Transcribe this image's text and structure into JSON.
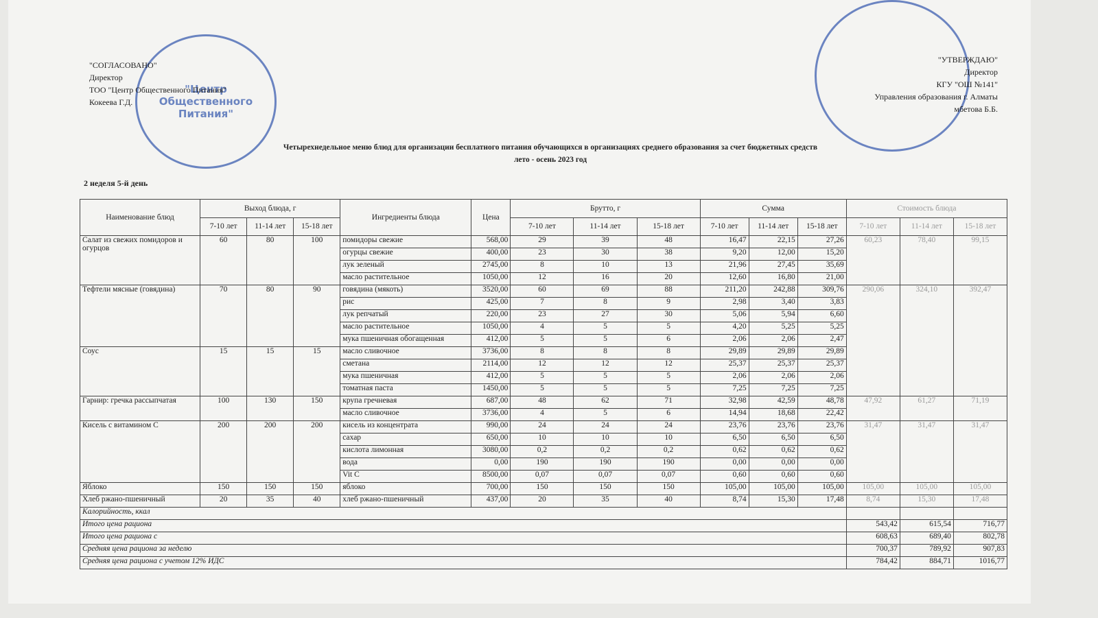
{
  "header": {
    "left": [
      "\"СОГЛАСОВАНО\"",
      "Директор",
      "ТОО \"Центр Общественного Питания\"",
      "Кокеева Г.Д."
    ],
    "right": [
      "\"УТВЕРЖДАЮ\"",
      "Директор",
      "КГУ \"ОШ №141\"",
      "Управления образования г. Алматы",
      "мбетова Б.Б."
    ],
    "stamp": "\"Центр Общественного Питания\"",
    "title": "Четырехнедельное меню блюд для организации бесплатного питания обучающихся в организациях среднего образования за счет бюджетных средств",
    "season": "лето - осень 2023 год",
    "day": "2 неделя 5-й день"
  },
  "table": {
    "columns": {
      "name": "Наименование блюд",
      "yield": "Выход блюда, г",
      "ingredients": "Ингредиенты блюда",
      "price": "Цена",
      "gross": "Брутто, г",
      "sum": "Сумма",
      "cost": "Стоимость блюда",
      "ages": [
        "7-10 лет",
        "11-14 лет",
        "15-18 лет"
      ]
    },
    "dishes": [
      {
        "name": "Салат из свежих помидоров и огурцов",
        "yield": [
          "60",
          "80",
          "100"
        ],
        "cost": [
          "60,23",
          "78,40",
          "99,15"
        ],
        "ingredients": [
          {
            "name": "помидоры свежие",
            "price": "568,00",
            "gross": [
              "29",
              "39",
              "48"
            ],
            "sum": [
              "16,47",
              "22,15",
              "27,26"
            ]
          },
          {
            "name": "огурцы свежие",
            "price": "400,00",
            "gross": [
              "23",
              "30",
              "38"
            ],
            "sum": [
              "9,20",
              "12,00",
              "15,20"
            ]
          },
          {
            "name": "лук зеленый",
            "price": "2745,00",
            "gross": [
              "8",
              "10",
              "13"
            ],
            "sum": [
              "21,96",
              "27,45",
              "35,69"
            ]
          },
          {
            "name": "масло растительное",
            "price": "1050,00",
            "gross": [
              "12",
              "16",
              "20"
            ],
            "sum": [
              "12,60",
              "16,80",
              "21,00"
            ]
          }
        ]
      },
      {
        "name": "Тефтели мясные (говядина)",
        "yield": [
          "70",
          "80",
          "90"
        ],
        "cost": [
          "290,06",
          "324,10",
          "392,47"
        ],
        "ingredients": [
          {
            "name": "говядина (мякоть)",
            "price": "3520,00",
            "gross": [
              "60",
              "69",
              "88"
            ],
            "sum": [
              "211,20",
              "242,88",
              "309,76"
            ]
          },
          {
            "name": "рис",
            "price": "425,00",
            "gross": [
              "7",
              "8",
              "9"
            ],
            "sum": [
              "2,98",
              "3,40",
              "3,83"
            ]
          },
          {
            "name": "лук репчатый",
            "price": "220,00",
            "gross": [
              "23",
              "27",
              "30"
            ],
            "sum": [
              "5,06",
              "5,94",
              "6,60"
            ]
          },
          {
            "name": "масло растительное",
            "price": "1050,00",
            "gross": [
              "4",
              "5",
              "5"
            ],
            "sum": [
              "4,20",
              "5,25",
              "5,25"
            ]
          },
          {
            "name": "мука пшеничная обогащенная",
            "price": "412,00",
            "gross": [
              "5",
              "5",
              "6"
            ],
            "sum": [
              "2,06",
              "2,06",
              "2,47"
            ]
          }
        ]
      },
      {
        "name": "Соус",
        "yield": [
          "15",
          "15",
          "15"
        ],
        "ingredients": [
          {
            "name": "масло сливочное",
            "price": "3736,00",
            "gross": [
              "8",
              "8",
              "8"
            ],
            "sum": [
              "29,89",
              "29,89",
              "29,89"
            ]
          },
          {
            "name": "сметана",
            "price": "2114,00",
            "gross": [
              "12",
              "12",
              "12"
            ],
            "sum": [
              "25,37",
              "25,37",
              "25,37"
            ]
          },
          {
            "name": "мука пшеничная",
            "price": "412,00",
            "gross": [
              "5",
              "5",
              "5"
            ],
            "sum": [
              "2,06",
              "2,06",
              "2,06"
            ]
          },
          {
            "name": "томатная паста",
            "price": "1450,00",
            "gross": [
              "5",
              "5",
              "5"
            ],
            "sum": [
              "7,25",
              "7,25",
              "7,25"
            ]
          }
        ]
      },
      {
        "name": "Гарнир: гречка рассыпчатая",
        "yield": [
          "100",
          "130",
          "150"
        ],
        "cost": [
          "47,92",
          "61,27",
          "71,19"
        ],
        "ingredients": [
          {
            "name": "крупа гречневая",
            "price": "687,00",
            "gross": [
              "48",
              "62",
              "71"
            ],
            "sum": [
              "32,98",
              "42,59",
              "48,78"
            ]
          },
          {
            "name": "масло сливочное",
            "price": "3736,00",
            "gross": [
              "4",
              "5",
              "6"
            ],
            "sum": [
              "14,94",
              "18,68",
              "22,42"
            ]
          }
        ]
      },
      {
        "name": "Кисель с витамином С",
        "yield": [
          "200",
          "200",
          "200"
        ],
        "cost": [
          "31,47",
          "31,47",
          "31,47"
        ],
        "ingredients": [
          {
            "name": "кисель из концентрата",
            "price": "990,00",
            "gross": [
              "24",
              "24",
              "24"
            ],
            "sum": [
              "23,76",
              "23,76",
              "23,76"
            ]
          },
          {
            "name": "сахар",
            "price": "650,00",
            "gross": [
              "10",
              "10",
              "10"
            ],
            "sum": [
              "6,50",
              "6,50",
              "6,50"
            ]
          },
          {
            "name": "кислота лимонная",
            "price": "3080,00",
            "gross": [
              "0,2",
              "0,2",
              "0,2"
            ],
            "sum": [
              "0,62",
              "0,62",
              "0,62"
            ]
          },
          {
            "name": "вода",
            "price": "0,00",
            "gross": [
              "190",
              "190",
              "190"
            ],
            "sum": [
              "0,00",
              "0,00",
              "0,00"
            ]
          },
          {
            "name": "Vit C",
            "price": "8500,00",
            "gross": [
              "0,07",
              "0,07",
              "0,07"
            ],
            "sum": [
              "0,60",
              "0,60",
              "0,60"
            ]
          }
        ]
      },
      {
        "name": "Яблоко",
        "yield": [
          "150",
          "150",
          "150"
        ],
        "cost": [
          "105,00",
          "105,00",
          "105,00"
        ],
        "ingredients": [
          {
            "name": "яблоко",
            "price": "700,00",
            "gross": [
              "150",
              "150",
              "150"
            ],
            "sum": [
              "105,00",
              "105,00",
              "105,00"
            ]
          }
        ]
      },
      {
        "name": "Хлеб ржано-пшеничный",
        "yield": [
          "20",
          "35",
          "40"
        ],
        "cost": [
          "8,74",
          "15,30",
          "17,48"
        ],
        "ingredients": [
          {
            "name": "хлеб ржано-пшеничный",
            "price": "437,00",
            "gross": [
              "20",
              "35",
              "40"
            ],
            "sum": [
              "8,74",
              "15,30",
              "17,48"
            ]
          }
        ]
      }
    ],
    "totals": [
      {
        "label": "Калорийность, ккал"
      },
      {
        "label": "Итого цена рациона",
        "values": [
          "543,42",
          "615,54",
          "716,77"
        ]
      },
      {
        "label": "Итого цена рациона с",
        "values": [
          "608,63",
          "689,40",
          "802,78"
        ]
      },
      {
        "label": "Средняя цена рациона за неделю",
        "values": [
          "700,37",
          "789,92",
          "907,83"
        ]
      },
      {
        "label": "Средняя цена рациона с учетом 12% ИДС",
        "values": [
          "784,42",
          "884,71",
          "1016,77"
        ]
      }
    ]
  }
}
